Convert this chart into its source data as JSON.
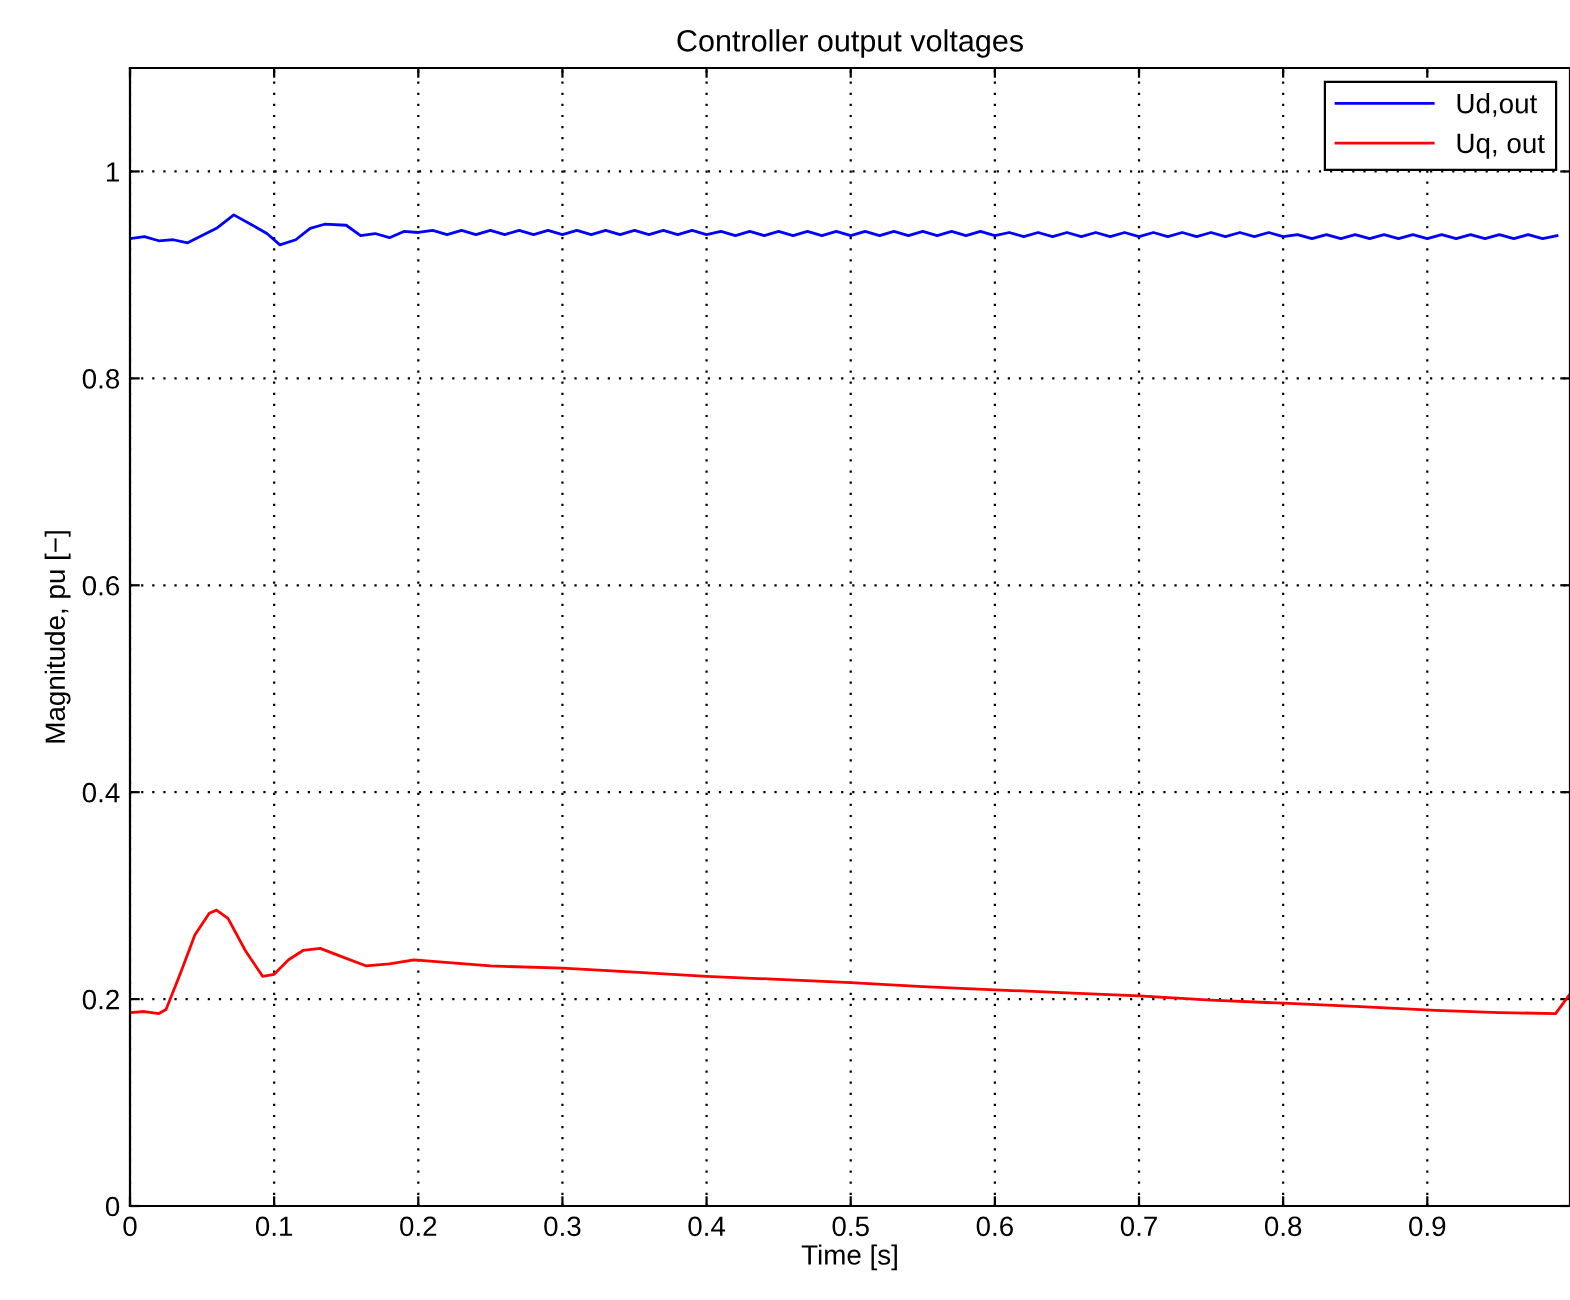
{
  "chart_data": {
    "type": "line",
    "title": "Controller output voltages",
    "xlabel": "Time [s]",
    "ylabel": "Magnitude, pu [−]",
    "xlim": [
      0,
      0.999
    ],
    "xticks": [
      0,
      0.1,
      0.2,
      0.3,
      0.4,
      0.5,
      0.6,
      0.7,
      0.8,
      0.9
    ],
    "ylim": [
      0,
      1.1
    ],
    "yticks": [
      0,
      0.2,
      0.4,
      0.6,
      0.8,
      1
    ],
    "grid": true,
    "legend": "top right",
    "line_style": "solid",
    "marker": "none",
    "series": [
      {
        "name": "Ud,out",
        "color": "#0000ff",
        "x": [
          0,
          0.01,
          0.02,
          0.03,
          0.04,
          0.05,
          0.06,
          0.072,
          0.085,
          0.095,
          0.104,
          0.115,
          0.125,
          0.135,
          0.15,
          0.16,
          0.17,
          0.18,
          0.19,
          0.2,
          0.21,
          0.22,
          0.23,
          0.24,
          0.25,
          0.26,
          0.27,
          0.28,
          0.29,
          0.3,
          0.31,
          0.32,
          0.33,
          0.34,
          0.35,
          0.36,
          0.37,
          0.38,
          0.39,
          0.4,
          0.41,
          0.42,
          0.43,
          0.44,
          0.45,
          0.46,
          0.47,
          0.48,
          0.49,
          0.5,
          0.51,
          0.52,
          0.53,
          0.54,
          0.55,
          0.56,
          0.57,
          0.58,
          0.59,
          0.6,
          0.61,
          0.62,
          0.63,
          0.64,
          0.65,
          0.66,
          0.67,
          0.68,
          0.69,
          0.7,
          0.71,
          0.72,
          0.73,
          0.74,
          0.75,
          0.76,
          0.77,
          0.78,
          0.79,
          0.8,
          0.81,
          0.82,
          0.83,
          0.84,
          0.85,
          0.86,
          0.87,
          0.88,
          0.89,
          0.9,
          0.91,
          0.92,
          0.93,
          0.94,
          0.95,
          0.96,
          0.97,
          0.98,
          0.99
        ],
        "values": [
          0.935,
          0.937,
          0.933,
          0.934,
          0.931,
          0.938,
          0.945,
          0.958,
          0.948,
          0.94,
          0.929,
          0.934,
          0.945,
          0.949,
          0.948,
          0.938,
          0.94,
          0.936,
          0.942,
          0.941,
          0.943,
          0.939,
          0.943,
          0.939,
          0.943,
          0.939,
          0.943,
          0.939,
          0.943,
          0.939,
          0.943,
          0.939,
          0.943,
          0.939,
          0.943,
          0.939,
          0.943,
          0.939,
          0.943,
          0.939,
          0.942,
          0.938,
          0.942,
          0.938,
          0.942,
          0.938,
          0.942,
          0.938,
          0.942,
          0.938,
          0.942,
          0.938,
          0.942,
          0.938,
          0.942,
          0.938,
          0.942,
          0.938,
          0.942,
          0.938,
          0.941,
          0.937,
          0.941,
          0.937,
          0.941,
          0.937,
          0.941,
          0.937,
          0.941,
          0.937,
          0.941,
          0.937,
          0.941,
          0.937,
          0.941,
          0.937,
          0.941,
          0.937,
          0.941,
          0.937,
          0.939,
          0.935,
          0.939,
          0.935,
          0.939,
          0.935,
          0.939,
          0.935,
          0.939,
          0.935,
          0.939,
          0.935,
          0.939,
          0.935,
          0.939,
          0.935,
          0.939,
          0.935,
          0.938
        ]
      },
      {
        "name": "Uq, out",
        "color": "#ff0000",
        "x": [
          0,
          0.01,
          0.02,
          0.025,
          0.035,
          0.045,
          0.055,
          0.06,
          0.068,
          0.08,
          0.092,
          0.1,
          0.11,
          0.12,
          0.132,
          0.145,
          0.164,
          0.18,
          0.197,
          0.25,
          0.3,
          0.35,
          0.4,
          0.45,
          0.5,
          0.55,
          0.6,
          0.65,
          0.7,
          0.75,
          0.8,
          0.85,
          0.906,
          0.95,
          0.989,
          0.999
        ],
        "values": [
          0.187,
          0.188,
          0.186,
          0.19,
          0.225,
          0.262,
          0.283,
          0.286,
          0.278,
          0.247,
          0.222,
          0.224,
          0.238,
          0.247,
          0.249,
          0.242,
          0.232,
          0.234,
          0.238,
          0.232,
          0.23,
          0.226,
          0.222,
          0.219,
          0.216,
          0.212,
          0.209,
          0.206,
          0.203,
          0.199,
          0.196,
          0.193,
          0.189,
          0.187,
          0.186,
          0.205
        ]
      }
    ]
  }
}
